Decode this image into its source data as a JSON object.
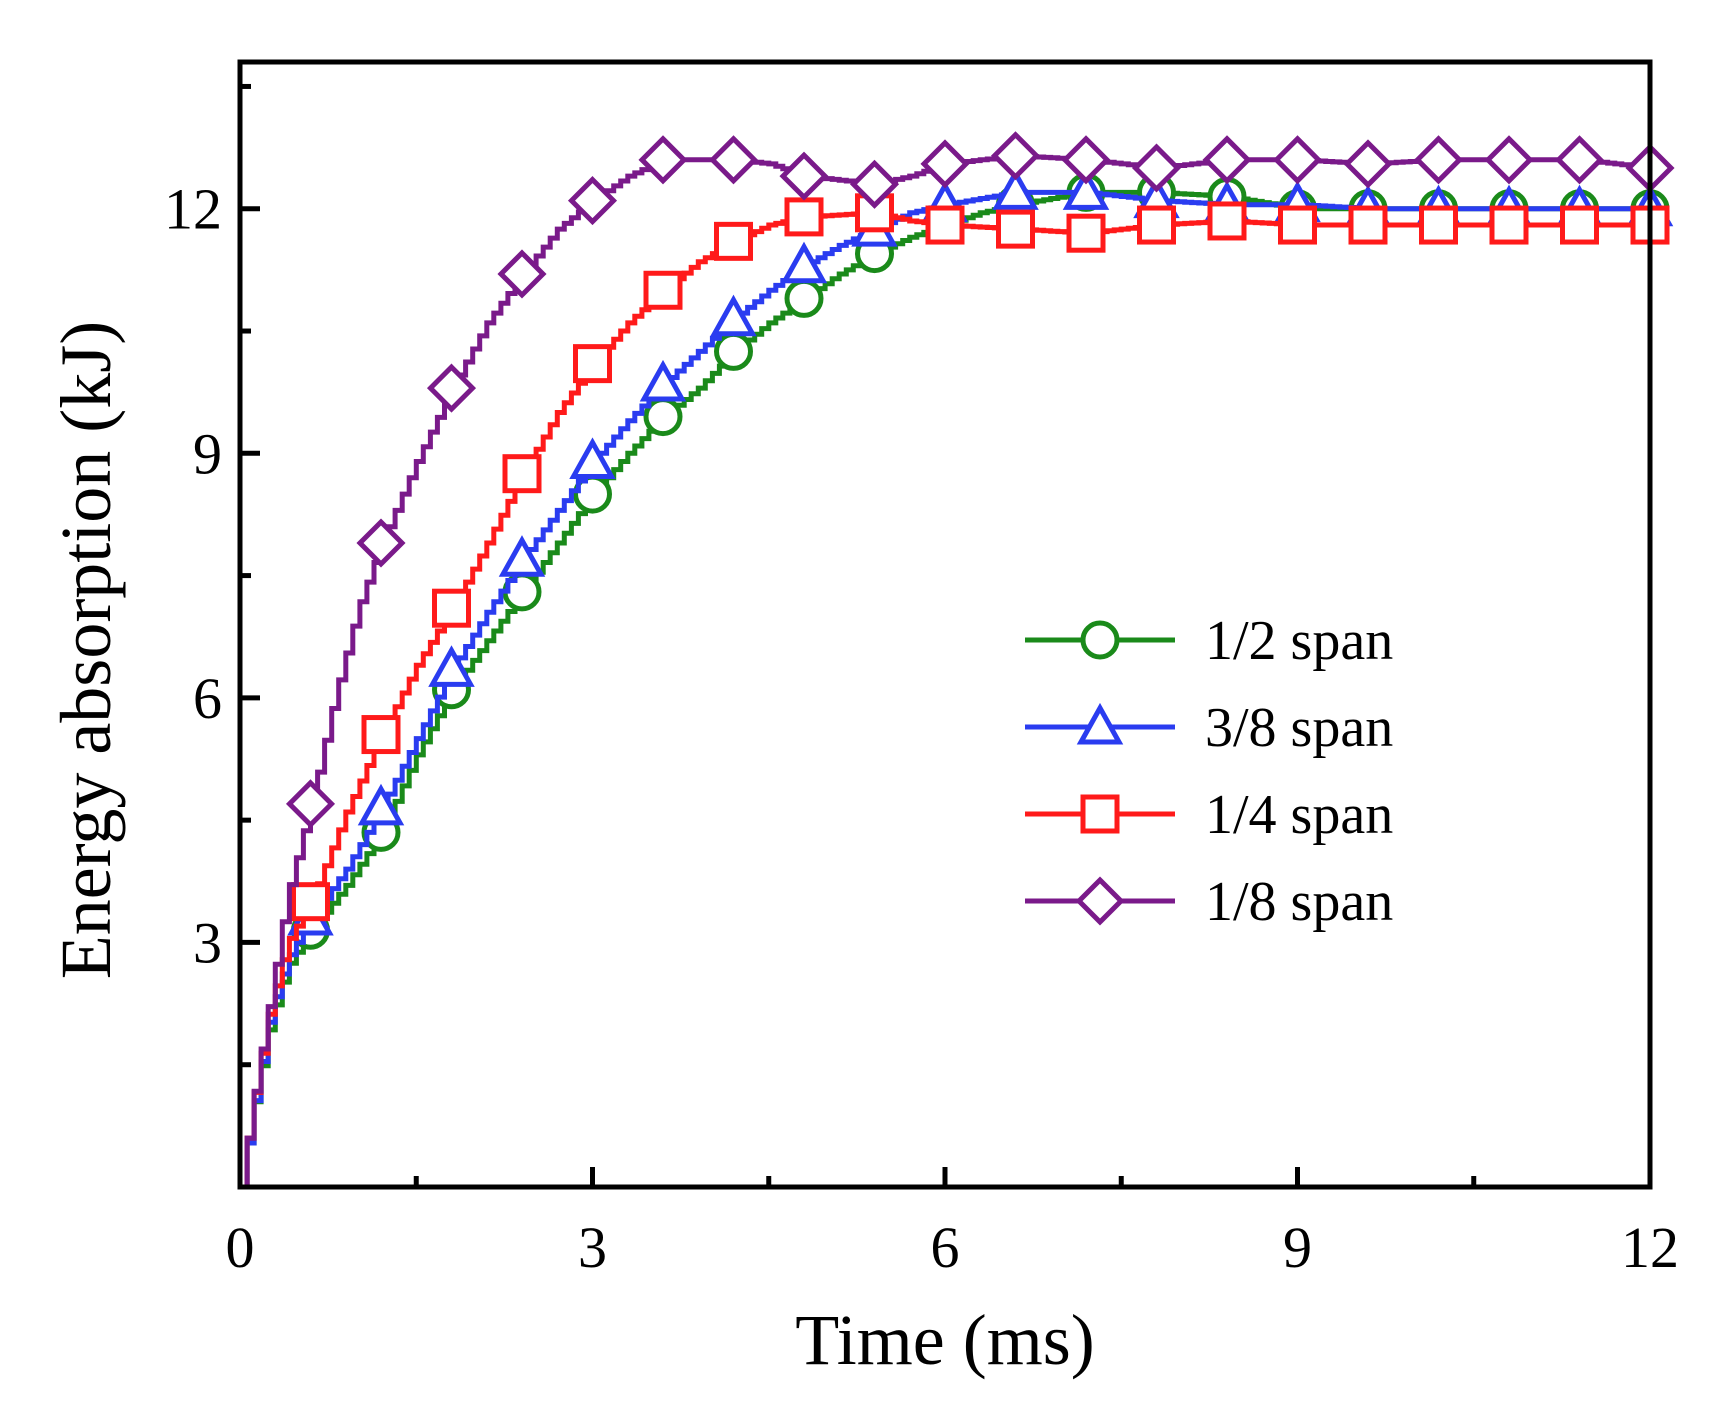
{
  "chart_data": {
    "type": "line",
    "xlabel": "Time (ms)",
    "ylabel": "Energy absorption (kJ)",
    "xlim": [
      0,
      12
    ],
    "ylim": [
      0,
      13.8
    ],
    "x_ticks": [
      0,
      3,
      6,
      9,
      12
    ],
    "y_ticks": [
      3,
      6,
      9,
      12
    ],
    "grid": false,
    "legend_position": "center-right",
    "series": [
      {
        "name": "1/2 span",
        "color": "#1a8a1a",
        "marker": "circle",
        "points": [
          [
            0,
            0
          ],
          [
            0.1,
            0.9
          ],
          [
            0.25,
            2.0
          ],
          [
            0.4,
            2.7
          ],
          [
            0.6,
            3.15
          ],
          [
            0.9,
            3.7
          ],
          [
            1.2,
            4.35
          ],
          [
            1.5,
            5.3
          ],
          [
            1.8,
            6.1
          ],
          [
            2.1,
            6.7
          ],
          [
            2.4,
            7.3
          ],
          [
            2.7,
            7.9
          ],
          [
            3.0,
            8.5
          ],
          [
            3.3,
            9.0
          ],
          [
            3.6,
            9.45
          ],
          [
            3.9,
            9.8
          ],
          [
            4.2,
            10.25
          ],
          [
            4.5,
            10.6
          ],
          [
            4.8,
            10.9
          ],
          [
            5.1,
            11.2
          ],
          [
            5.4,
            11.45
          ],
          [
            5.7,
            11.65
          ],
          [
            6.0,
            11.8
          ],
          [
            6.3,
            11.95
          ],
          [
            6.6,
            12.05
          ],
          [
            7.2,
            12.2
          ],
          [
            7.8,
            12.2
          ],
          [
            8.4,
            12.15
          ],
          [
            9.0,
            12.0
          ],
          [
            9.6,
            12.0
          ],
          [
            10.2,
            12.0
          ],
          [
            10.8,
            12.0
          ],
          [
            11.4,
            12.0
          ],
          [
            12.0,
            12.0
          ]
        ],
        "marker_x": [
          0.6,
          1.2,
          1.8,
          2.4,
          3.0,
          3.6,
          4.2,
          4.8,
          5.4,
          6.0,
          6.6,
          7.2,
          7.8,
          8.4,
          9.0,
          9.6,
          10.2,
          10.8,
          11.4,
          12.0
        ]
      },
      {
        "name": "3/8 span",
        "color": "#2a3cf0",
        "marker": "triangle",
        "points": [
          [
            0,
            0
          ],
          [
            0.1,
            0.9
          ],
          [
            0.25,
            2.1
          ],
          [
            0.4,
            2.8
          ],
          [
            0.6,
            3.3
          ],
          [
            0.9,
            3.9
          ],
          [
            1.2,
            4.65
          ],
          [
            1.5,
            5.5
          ],
          [
            1.8,
            6.35
          ],
          [
            2.1,
            7.05
          ],
          [
            2.4,
            7.7
          ],
          [
            2.7,
            8.3
          ],
          [
            3.0,
            8.9
          ],
          [
            3.3,
            9.4
          ],
          [
            3.6,
            9.85
          ],
          [
            3.9,
            10.25
          ],
          [
            4.2,
            10.65
          ],
          [
            4.5,
            11.0
          ],
          [
            4.8,
            11.3
          ],
          [
            5.1,
            11.55
          ],
          [
            5.4,
            11.75
          ],
          [
            5.7,
            11.95
          ],
          [
            6.0,
            12.05
          ],
          [
            6.6,
            12.2
          ],
          [
            7.2,
            12.2
          ],
          [
            7.8,
            12.1
          ],
          [
            8.4,
            12.05
          ],
          [
            9.0,
            12.05
          ],
          [
            9.6,
            12.0
          ],
          [
            10.2,
            12.0
          ],
          [
            10.8,
            12.0
          ],
          [
            11.4,
            12.0
          ],
          [
            12.0,
            12.0
          ]
        ],
        "marker_x": [
          0.6,
          1.2,
          1.8,
          2.4,
          3.0,
          3.6,
          4.2,
          4.8,
          5.4,
          6.0,
          6.6,
          7.2,
          7.8,
          8.4,
          9.0,
          9.6,
          10.2,
          10.8,
          11.4,
          12.0
        ]
      },
      {
        "name": "1/4 span",
        "color": "#ff1a1a",
        "marker": "square",
        "points": [
          [
            0,
            0
          ],
          [
            0.1,
            1.0
          ],
          [
            0.25,
            2.2
          ],
          [
            0.4,
            3.0
          ],
          [
            0.6,
            3.5
          ],
          [
            0.9,
            4.6
          ],
          [
            1.2,
            5.55
          ],
          [
            1.5,
            6.4
          ],
          [
            1.8,
            7.1
          ],
          [
            2.1,
            7.9
          ],
          [
            2.4,
            8.75
          ],
          [
            2.7,
            9.5
          ],
          [
            3.0,
            10.1
          ],
          [
            3.3,
            10.6
          ],
          [
            3.6,
            11.0
          ],
          [
            3.9,
            11.35
          ],
          [
            4.2,
            11.6
          ],
          [
            4.5,
            11.8
          ],
          [
            4.8,
            11.9
          ],
          [
            5.4,
            11.95
          ],
          [
            5.7,
            11.85
          ],
          [
            6.0,
            11.8
          ],
          [
            6.6,
            11.75
          ],
          [
            7.2,
            11.7
          ],
          [
            7.8,
            11.8
          ],
          [
            8.4,
            11.85
          ],
          [
            9.0,
            11.8
          ],
          [
            9.6,
            11.8
          ],
          [
            10.2,
            11.8
          ],
          [
            10.8,
            11.8
          ],
          [
            11.4,
            11.8
          ],
          [
            12.0,
            11.8
          ]
        ],
        "marker_x": [
          0.6,
          1.2,
          1.8,
          2.4,
          3.0,
          3.6,
          4.2,
          4.8,
          5.4,
          6.0,
          6.6,
          7.2,
          7.8,
          8.4,
          9.0,
          9.6,
          10.2,
          10.8,
          11.4,
          12.0
        ]
      },
      {
        "name": "1/8 span",
        "color": "#7a1a8a",
        "marker": "diamond",
        "points": [
          [
            0,
            0
          ],
          [
            0.1,
            1.0
          ],
          [
            0.25,
            2.3
          ],
          [
            0.4,
            3.6
          ],
          [
            0.6,
            4.7
          ],
          [
            0.8,
            6.0
          ],
          [
            1.0,
            7.1
          ],
          [
            1.2,
            7.9
          ],
          [
            1.5,
            8.9
          ],
          [
            1.8,
            9.8
          ],
          [
            2.1,
            10.6
          ],
          [
            2.4,
            11.2
          ],
          [
            2.7,
            11.75
          ],
          [
            3.0,
            12.1
          ],
          [
            3.3,
            12.4
          ],
          [
            3.6,
            12.6
          ],
          [
            3.9,
            12.6
          ],
          [
            4.2,
            12.6
          ],
          [
            4.5,
            12.55
          ],
          [
            4.8,
            12.4
          ],
          [
            5.1,
            12.35
          ],
          [
            5.4,
            12.3
          ],
          [
            5.7,
            12.4
          ],
          [
            6.0,
            12.55
          ],
          [
            6.6,
            12.65
          ],
          [
            7.2,
            12.6
          ],
          [
            7.8,
            12.5
          ],
          [
            8.4,
            12.6
          ],
          [
            9.0,
            12.6
          ],
          [
            9.6,
            12.55
          ],
          [
            10.2,
            12.6
          ],
          [
            10.8,
            12.6
          ],
          [
            11.4,
            12.6
          ],
          [
            12.0,
            12.5
          ]
        ],
        "marker_x": [
          0.6,
          1.2,
          1.8,
          2.4,
          3.0,
          3.6,
          4.2,
          4.8,
          5.4,
          6.0,
          6.6,
          7.2,
          7.8,
          8.4,
          9.0,
          9.6,
          10.2,
          10.8,
          11.4,
          12.0
        ]
      }
    ]
  }
}
